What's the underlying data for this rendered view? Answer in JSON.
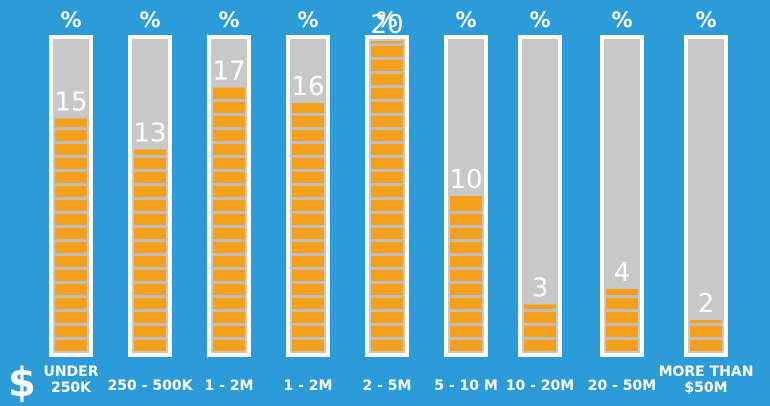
{
  "chart_data": {
    "type": "bar",
    "title": "",
    "unit_label": "%",
    "currency_symbol": "$",
    "categories": [
      [
        "UNDER",
        "250K"
      ],
      [
        "250 - 500K"
      ],
      [
        "1 - 2M"
      ],
      [
        "1 - 2M"
      ],
      [
        "2 - 5M"
      ],
      [
        "5 - 10 M"
      ],
      [
        "10 - 20M"
      ],
      [
        "20 - 50M"
      ],
      [
        "MORE THAN",
        "$50M"
      ]
    ],
    "values": [
      15,
      13,
      17,
      16,
      20,
      10,
      3,
      4,
      2
    ],
    "ylim": [
      0,
      20
    ],
    "colors": {
      "background": "#2b9cd8",
      "tube": "#c8c8c8",
      "fill": "#f5a01a",
      "gap": "#bebebe",
      "border": "#ffffff"
    }
  }
}
